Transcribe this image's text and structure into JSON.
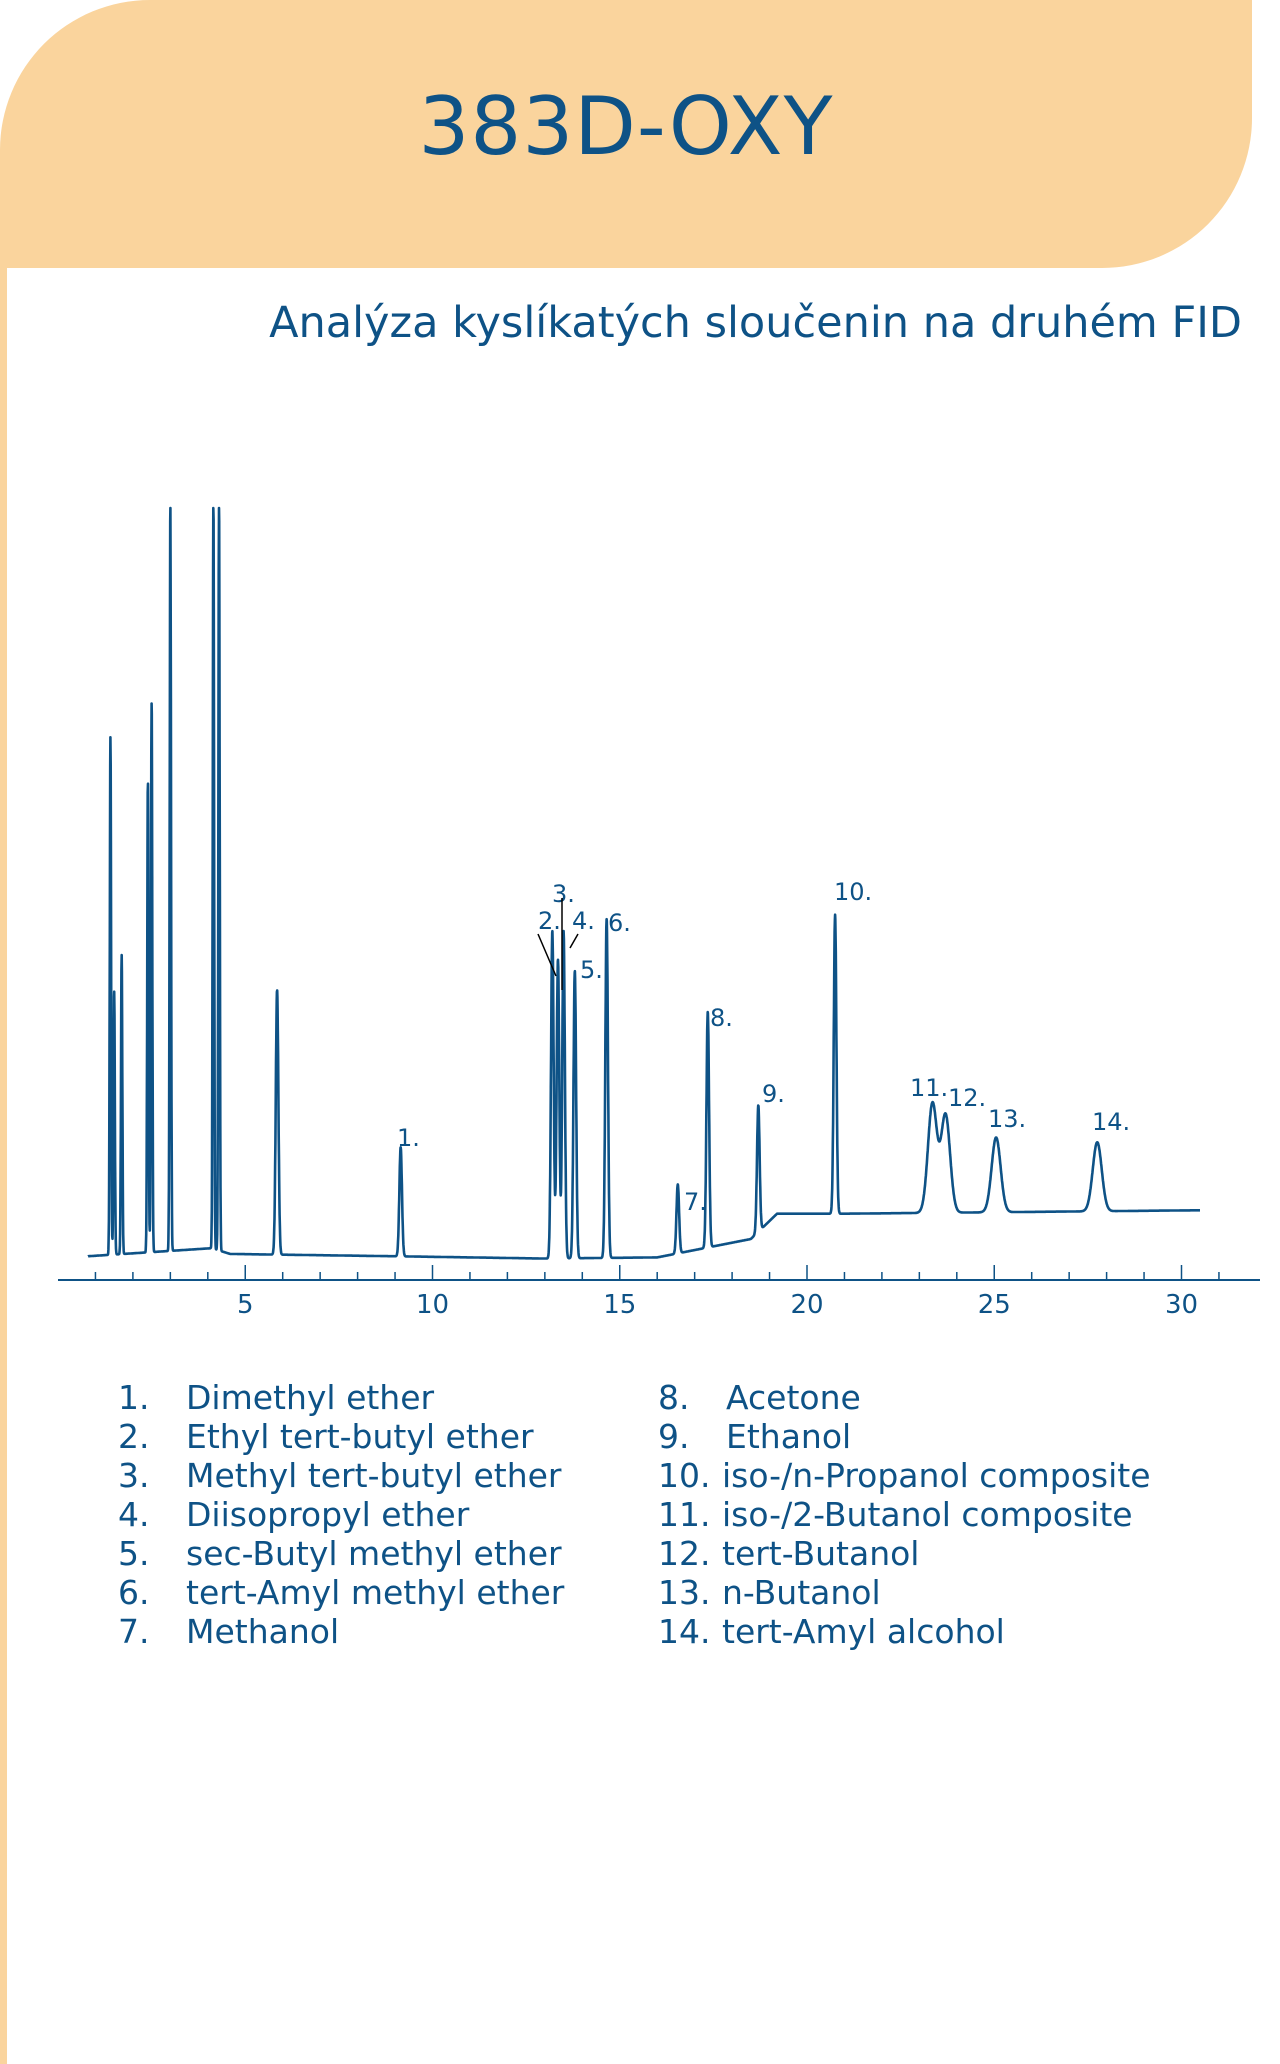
{
  "header": {
    "title": "383D-OXY",
    "subtitle": "Analýza kyslíkatých sloučenin na druhém FID"
  },
  "colors": {
    "accent_band": "#fad49d",
    "text": "#0e5286",
    "trace": "#0e5286"
  },
  "chart_data": {
    "type": "line",
    "title": "",
    "xlabel": "",
    "ylabel": "",
    "xlim": [
      0,
      32
    ],
    "x_ticks": [
      "5",
      "10",
      "15",
      "20",
      "25",
      "30"
    ],
    "x_tick_values": [
      5,
      10,
      15,
      20,
      25,
      30
    ],
    "y_axis_shown": false,
    "baseline": [
      [
        0.8,
        0.05
      ],
      [
        4.1,
        0.12
      ],
      [
        4.6,
        0.07
      ],
      [
        9.0,
        0.05
      ],
      [
        13.0,
        0.03
      ],
      [
        16.0,
        0.04
      ],
      [
        18.5,
        0.2
      ],
      [
        19.2,
        0.42
      ],
      [
        21.0,
        0.42
      ],
      [
        30.5,
        0.45
      ]
    ],
    "solvent_peaks": [
      {
        "rt": 1.4,
        "height": 4.5
      },
      {
        "rt": 1.5,
        "height": 2.3
      },
      {
        "rt": 1.7,
        "height": 2.6
      },
      {
        "rt": 2.4,
        "height": 4.1
      },
      {
        "rt": 2.5,
        "height": 4.8
      },
      {
        "rt": 3.0,
        "height": 6.5
      },
      {
        "rt": 4.15,
        "height": 6.5
      },
      {
        "rt": 4.3,
        "height": 6.5
      }
    ],
    "peaks": [
      {
        "id": 1,
        "label": "1.",
        "rt": 5.85,
        "height": 2.3
      },
      {
        "id": 2,
        "label": "1.",
        "rt": 9.15,
        "height": 0.95
      },
      {
        "id": 3,
        "label": "2.",
        "rt": 13.2,
        "height": 2.85
      },
      {
        "id": 4,
        "label": "3.",
        "rt": 13.35,
        "height": 2.6
      },
      {
        "id": 5,
        "label": "4.",
        "rt": 13.5,
        "height": 2.85
      },
      {
        "id": 6,
        "label": "5.",
        "rt": 13.8,
        "height": 2.5
      },
      {
        "id": 7,
        "label": "6.",
        "rt": 14.65,
        "height": 2.95
      },
      {
        "id": 8,
        "label": "7.",
        "rt": 16.55,
        "height": 0.6
      },
      {
        "id": 9,
        "label": "8.",
        "rt": 17.35,
        "height": 2.05
      },
      {
        "id": 10,
        "label": "9.",
        "rt": 18.7,
        "height": 1.1
      },
      {
        "id": 11,
        "label": "10.",
        "rt": 20.75,
        "height": 2.6
      },
      {
        "id": 12,
        "label": "11.",
        "rt": 23.35,
        "height": 0.95
      },
      {
        "id": 13,
        "label": "12.",
        "rt": 23.7,
        "height": 0.85
      },
      {
        "id": 14,
        "label": "13.",
        "rt": 25.05,
        "height": 0.65
      },
      {
        "id": 15,
        "label": "14.",
        "rt": 27.75,
        "height": 0.6
      }
    ],
    "legend": [
      {
        "num": "1.",
        "name": "Dimethyl ether"
      },
      {
        "num": "2.",
        "name": "Ethyl tert-butyl ether"
      },
      {
        "num": "3.",
        "name": "Methyl tert-butyl ether"
      },
      {
        "num": "4.",
        "name": "Diisopropyl ether"
      },
      {
        "num": "5.",
        "name": "sec-Butyl methyl ether"
      },
      {
        "num": "6.",
        "name": "tert-Amyl methyl ether"
      },
      {
        "num": "7.",
        "name": "Methanol"
      },
      {
        "num": "8.",
        "name": "Acetone"
      },
      {
        "num": "9.",
        "name": "Ethanol"
      },
      {
        "num": "10.",
        "name": "iso-/n-Propanol composite"
      },
      {
        "num": "11.",
        "name": "iso-/2-Butanol composite"
      },
      {
        "num": "12.",
        "name": "tert-Butanol"
      },
      {
        "num": "13.",
        "name": "n-Butanol"
      },
      {
        "num": "14.",
        "name": "tert-Amyl alcohol"
      }
    ]
  }
}
